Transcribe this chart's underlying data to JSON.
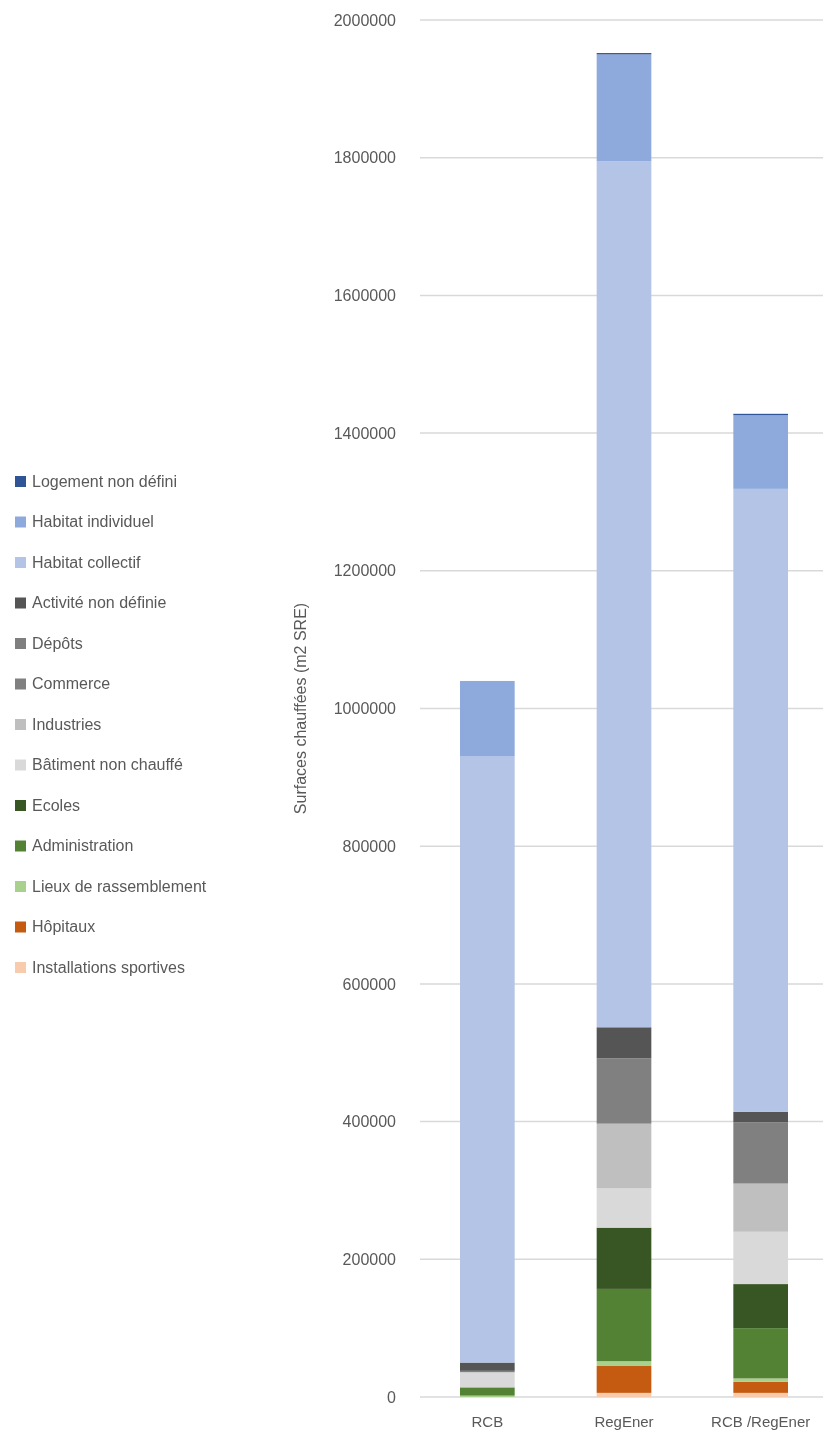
{
  "chart_data": {
    "type": "bar",
    "stacked": true,
    "ylabel": "Surfaces chauffées (m2 SRE)",
    "categories": [
      "RCB",
      "RegEner",
      "RCB /RegEner"
    ],
    "series": [
      {
        "name": "Installations sportives",
        "color": "#f8cbad",
        "values": [
          null,
          6000,
          6000
        ]
      },
      {
        "name": "Hôpitaux",
        "color": "#c55a11",
        "values": [
          0,
          39000,
          16000
        ]
      },
      {
        "name": "Lieux de rassemblement",
        "color": "#a9d18e",
        "values": [
          2000,
          7000,
          5000
        ]
      },
      {
        "name": "Administration",
        "color": "#548235",
        "values": [
          12000,
          105000,
          73000
        ]
      },
      {
        "name": "Ecoles",
        "color": "#375623",
        "values": [
          0,
          89000,
          64000
        ]
      },
      {
        "name": "Bâtiment non chauffé",
        "color": "#d9d9d9",
        "values": [
          22000,
          57000,
          76000
        ]
      },
      {
        "name": "Industries",
        "color": "#bfbfbf",
        "values": [
          null,
          94000,
          70000
        ]
      },
      {
        "name": "Commerce",
        "color": "#808080",
        "values": [
          2000,
          95000,
          89000
        ]
      },
      {
        "name": "Dépôts",
        "color": "#7f7f7f",
        "values": [
          0,
          0,
          0
        ]
      },
      {
        "name": "Activité non définie",
        "color": "#555555",
        "values": [
          12000,
          45000,
          15000
        ]
      },
      {
        "name": "Habitat collectif",
        "color": "#b4c4e6",
        "values": [
          881000,
          1258000,
          905000
        ]
      },
      {
        "name": "Habitat individuel",
        "color": "#8eaadc",
        "values": [
          109000,
          155000,
          107000
        ]
      },
      {
        "name": "Logement non défini",
        "color": "#2f5597",
        "values": [
          0,
          2000,
          2000
        ]
      }
    ],
    "ylim": [
      0,
      2000000
    ],
    "yticks": [
      0,
      200000,
      400000,
      600000,
      800000,
      1000000,
      1200000,
      1400000,
      1600000,
      1800000,
      2000000
    ],
    "grid": "y",
    "legend": "left"
  }
}
